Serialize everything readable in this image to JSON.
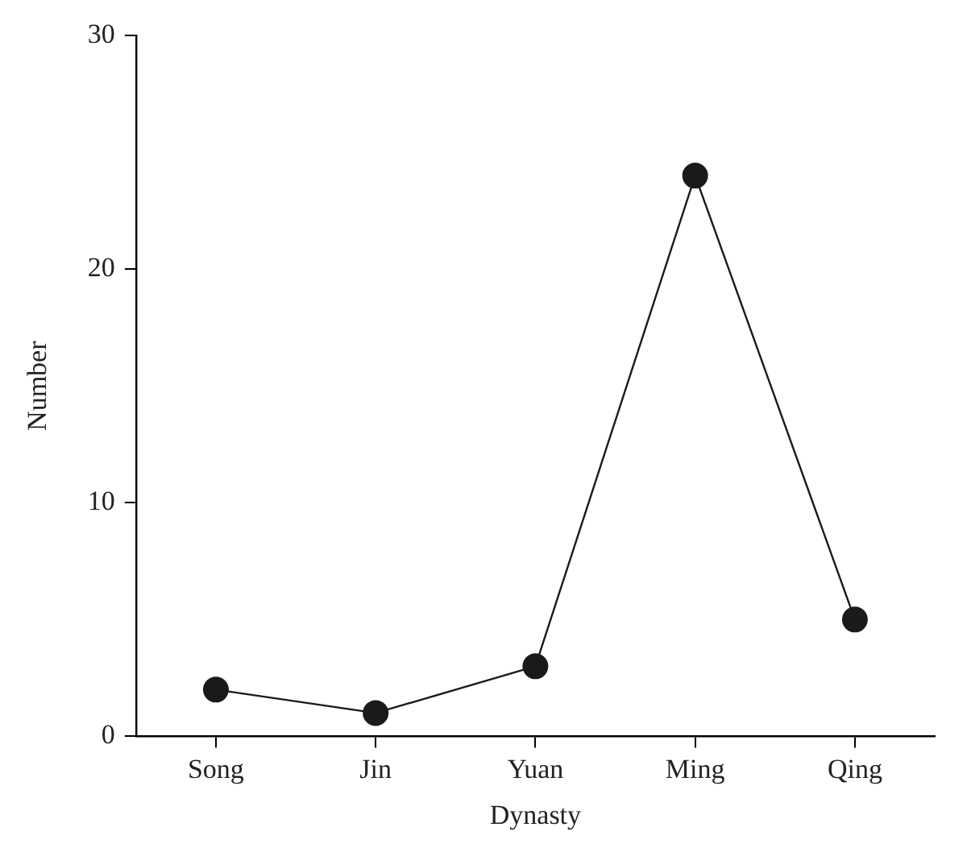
{
  "chart_data": {
    "type": "line",
    "xlabel": "Dynasty",
    "ylabel": "Number",
    "categories": [
      "Song",
      "Jin",
      "Yuan",
      "Ming",
      "Qing"
    ],
    "series": [
      {
        "color": "#1a1a1a",
        "values": [
          2,
          1,
          3,
          24,
          5
        ]
      }
    ],
    "ylim": [
      0,
      30
    ],
    "yticks": [
      0,
      10,
      20,
      30
    ],
    "grid": false,
    "legend": false,
    "marker": "circle",
    "line_style": "solid"
  }
}
